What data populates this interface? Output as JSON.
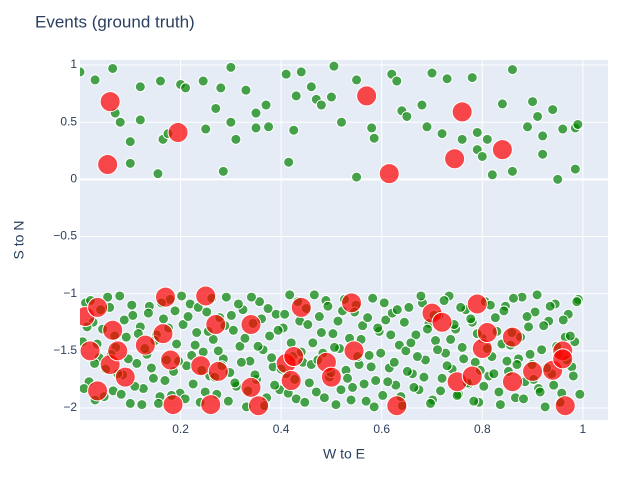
{
  "chart_data": {
    "type": "scatter",
    "title": "Events (ground truth)",
    "x_label": "W to E",
    "y_label": "S to N",
    "xlim": [
      0,
      1.05
    ],
    "ylim": [
      -2.105,
      1.044
    ],
    "xticks": [
      0.2,
      0.4,
      0.6,
      0.8,
      1
    ],
    "yticks": [
      1,
      0.5,
      0,
      {
        "value": -0.5,
        "label": "−0.5"
      },
      {
        "value": -1,
        "label": "−1"
      },
      {
        "value": -1.5,
        "label": "−1.5"
      },
      {
        "value": -2,
        "label": "−2"
      }
    ],
    "grid": true,
    "background": "#e5ecf6",
    "series": [
      {
        "color": "green",
        "marker_size": 10,
        "opacity": 0.7,
        "x": [
          0,
          0.03,
          0.065,
          0.07,
          0.08,
          0.1,
          0.1,
          0.12,
          0.12,
          0.155,
          0.16,
          0.165,
          0.175,
          0.2,
          0.21,
          0.245,
          0.25,
          0.27,
          0.28,
          0.285,
          0.3,
          0.3,
          0.31,
          0.33,
          0.35,
          0.35,
          0.37,
          0.375,
          0.41,
          0.415,
          0.425,
          0.43,
          0.44,
          0.46,
          0.47,
          0.48,
          0.5,
          0.505,
          0.52,
          0.55,
          0.55,
          0.58,
          0.585,
          0.62,
          0.63,
          0.64,
          0.65,
          0.68,
          0.69,
          0.7,
          0.72,
          0.73,
          0.76,
          0.78,
          0.79,
          0.79,
          0.8,
          0.81,
          0.82,
          0.84,
          0.86,
          0.86,
          0.89,
          0.9,
          0.91,
          0.92,
          0.92,
          0.94,
          0.95,
          0.96,
          0.985,
          0.99,
          0.985
        ],
        "values": [
          0.94,
          0.87,
          0.97,
          0.58,
          0.5,
          0.33,
          0.14,
          0.81,
          0.52,
          0.05,
          0.86,
          0.35,
          0.4,
          0.83,
          0.8,
          0.86,
          0.44,
          0.62,
          0.8,
          0.07,
          0.98,
          0.5,
          0.35,
          0.78,
          0.45,
          0.58,
          0.65,
          0.46,
          0.92,
          0.15,
          0.43,
          0.73,
          0.94,
          0.81,
          0.7,
          0.65,
          0.72,
          0.99,
          0.5,
          0.02,
          0.87,
          0.45,
          0.36,
          0.92,
          0.86,
          0.6,
          0.55,
          0.65,
          0.46,
          0.93,
          0.4,
          0.88,
          0.35,
          0.89,
          0.41,
          0.26,
          0.2,
          0.35,
          0.04,
          0.66,
          0.96,
          0.07,
          0.46,
          0.68,
          0.55,
          0.38,
          0.22,
          0.61,
          0,
          0.44,
          0.45,
          0.48,
          0.09
        ]
      },
      {
        "color": "green",
        "marker_size": 10,
        "opacity": 0.7,
        "x": [
          0.005,
          0.011,
          0.018,
          0.026,
          0.03,
          0.038,
          0.045,
          0.051,
          0.059,
          0.066,
          0.071,
          0.079,
          0.085,
          0.092,
          0.1,
          0.105,
          0.113,
          0.12,
          0.126,
          0.133,
          0.138,
          0.146,
          0.152,
          0.159,
          0.166,
          0.172,
          0.179,
          0.186,
          0.192,
          0.199,
          0.205,
          0.212,
          0.219,
          0.225,
          0.232,
          0.239,
          0.245,
          0.252,
          0.258,
          0.265,
          0.272,
          0.278,
          0.285,
          0.291,
          0.298,
          0.305,
          0.311,
          0.318,
          0.324,
          0.331,
          0.338,
          0.344,
          0.351,
          0.357,
          0.364,
          0.371,
          0.377,
          0.384,
          0.39,
          0.397,
          0.404,
          0.41,
          0.417,
          0.423,
          0.43,
          0.437,
          0.443,
          0.45,
          0.456,
          0.463,
          0.47,
          0.476,
          0.483,
          0.489,
          0.496,
          0.503,
          0.509,
          0.516,
          0.522,
          0.529,
          0.536,
          0.542,
          0.549,
          0.555,
          0.562,
          0.569,
          0.575,
          0.582,
          0.588,
          0.595,
          0.602,
          0.608,
          0.615,
          0.621,
          0.628,
          0.635,
          0.641,
          0.648,
          0.654,
          0.661,
          0.668,
          0.674,
          0.681,
          0.687,
          0.694,
          0.701,
          0.707,
          0.714,
          0.72,
          0.727,
          0.734,
          0.74,
          0.747,
          0.753,
          0.76,
          0.767,
          0.773,
          0.78,
          0.786,
          0.793,
          0.8,
          0.806,
          0.813,
          0.819,
          0.826,
          0.833,
          0.839,
          0.846,
          0.852,
          0.859,
          0.866,
          0.872,
          0.879,
          0.885,
          0.892,
          0.899,
          0.905,
          0.912,
          0.918,
          0.925,
          0.932,
          0.938,
          0.945,
          0.951,
          0.958,
          0.965,
          0.971,
          0.978,
          0.984,
          0.991
        ],
        "values": [
          -1.42,
          -1.08,
          -1.77,
          -1.25,
          -1.93,
          -1.56,
          -1.31,
          -1.66,
          -1.12,
          -1.85,
          -1.47,
          -1.02,
          -1.71,
          -1.38,
          -1.96,
          -1.19,
          -1.61,
          -1.29,
          -1.83,
          -1.53,
          -1.11,
          -1.74,
          -1.36,
          -1.9,
          -1.22,
          -1.58,
          -1.05,
          -1.68,
          -1.44,
          -1.87,
          -1.27,
          -1.63,
          -1.09,
          -1.79,
          -1.34,
          -1.95,
          -1.51,
          -1.16,
          -1.72,
          -1.4,
          -1.88,
          -1.21,
          -1.57,
          -1.03,
          -1.69,
          -1.32,
          -1.81,
          -1.46,
          -1.14,
          -1.99,
          -1.59,
          -1.26,
          -1.75,
          -1.07,
          -1.49,
          -1.91,
          -1.37,
          -1.64,
          -1.18,
          -1.84,
          -1.3,
          -1.7,
          -1.01,
          -1.55,
          -1.92,
          -1.24,
          -1.6,
          -1.13,
          -1.78,
          -1.43,
          -1.86,
          -1.2,
          -1.52,
          -1.06,
          -1.73,
          -1.35,
          -1.97,
          -1.48,
          -1.15,
          -1.67,
          -1.39,
          -1.82,
          -1.1,
          -1.62,
          -1.28,
          -1.94,
          -1.54,
          -1.04,
          -1.76,
          -1.33,
          -1.89,
          -1.23,
          -1.65,
          -1.17,
          -1.8,
          -1.45,
          -1.98,
          -1.5,
          -1.12,
          -1.7,
          -1.36,
          -1.84,
          -1.08,
          -1.58,
          -1.26,
          -1.93,
          -1.41,
          -1.19,
          -1.74,
          -1.52,
          -1.02,
          -1.66,
          -1.31,
          -1.88,
          -1.47,
          -1.14,
          -1.79,
          -1.25,
          -1.6,
          -1.95,
          -1.39,
          -1.07,
          -1.72,
          -1.55,
          -1.21,
          -1.86,
          -1.44,
          -1.11,
          -1.68,
          -1.34,
          -1.91,
          -1.57,
          -1.03,
          -1.77,
          -1.29,
          -1.62,
          -1.16,
          -1.83,
          -1.49,
          -1.99,
          -1.24,
          -1.7,
          -1.09,
          -1.53,
          -1.87,
          -1.38,
          -1.18,
          -1.64,
          -1.42,
          -1.05
        ]
      },
      {
        "color": "green",
        "marker_size": 10,
        "opacity": 0.7,
        "x": [
          0.008,
          0.014,
          0.021,
          0.029,
          0.034,
          0.041,
          0.048,
          0.055,
          0.062,
          0.069,
          0.075,
          0.082,
          0.088,
          0.096,
          0.103,
          0.109,
          0.116,
          0.123,
          0.129,
          0.136,
          0.142,
          0.149,
          0.156,
          0.162,
          0.169,
          0.176,
          0.182,
          0.189,
          0.196,
          0.202,
          0.209,
          0.215,
          0.222,
          0.229,
          0.235,
          0.242,
          0.249,
          0.255,
          0.262,
          0.268,
          0.275,
          0.282,
          0.288,
          0.295,
          0.301,
          0.308,
          0.315,
          0.321,
          0.328,
          0.334,
          0.341,
          0.348,
          0.354,
          0.361,
          0.367,
          0.374,
          0.381,
          0.387,
          0.394,
          0.4,
          0.407,
          0.414,
          0.42,
          0.427,
          0.433,
          0.44,
          0.447,
          0.453,
          0.46,
          0.466,
          0.473,
          0.48,
          0.486,
          0.493,
          0.499,
          0.506,
          0.513,
          0.519,
          0.526,
          0.532,
          0.539,
          0.546,
          0.552,
          0.559,
          0.565,
          0.572,
          0.579,
          0.585,
          0.592,
          0.598,
          0.605,
          0.612,
          0.618,
          0.625,
          0.631,
          0.638,
          0.645,
          0.651,
          0.658,
          0.664,
          0.671,
          0.678,
          0.684,
          0.691,
          0.697,
          0.704,
          0.711,
          0.717,
          0.724,
          0.73,
          0.737,
          0.744,
          0.75,
          0.757,
          0.763,
          0.77,
          0.777,
          0.783,
          0.79,
          0.796,
          0.803,
          0.81,
          0.816,
          0.823,
          0.829,
          0.836,
          0.843,
          0.849,
          0.856,
          0.862,
          0.869,
          0.876,
          0.882,
          0.889,
          0.895,
          0.902,
          0.909,
          0.915,
          0.922,
          0.928,
          0.935,
          0.942,
          0.948,
          0.955,
          0.961,
          0.968,
          0.975,
          0.981,
          0.988,
          0.994
        ],
        "values": [
          -1.83,
          -1.29,
          -1.06,
          -1.61,
          -1.44,
          -1.14,
          -1.9,
          -1.03,
          -1.53,
          -1.37,
          -1.7,
          -1.88,
          -1.23,
          -1.57,
          -1.1,
          -1.81,
          -1.35,
          -1.97,
          -1.48,
          -1.17,
          -1.65,
          -1.41,
          -1.96,
          -1.08,
          -1.76,
          -1.3,
          -1.89,
          -1.15,
          -1.59,
          -1.02,
          -1.92,
          -1.2,
          -1.54,
          -1.45,
          -1.12,
          -1.67,
          -1.86,
          -1.33,
          -1.04,
          -1.73,
          -1.5,
          -1.63,
          -1.28,
          -1.94,
          -1.19,
          -1.78,
          -1.09,
          -1.6,
          -1.39,
          -1.85,
          -1.03,
          -1.71,
          -1.46,
          -1.22,
          -1.98,
          -1.13,
          -1.56,
          -1.8,
          -1.32,
          -1.66,
          -1.18,
          -1.87,
          -1.43,
          -1.75,
          -1.07,
          -1.51,
          -1.95,
          -1.27,
          -1.62,
          -1.01,
          -1.58,
          -1.34,
          -1.91,
          -1.11,
          -1.69,
          -1.47,
          -1.24,
          -1.84,
          -1.05,
          -1.74,
          -1.93,
          -1.16,
          -1.55,
          -1.4,
          -1.79,
          -1.21,
          -1.64,
          -1.99,
          -1.3,
          -1.52,
          -1.08,
          -1.77,
          -1.36,
          -1.6,
          -1.14,
          -1.9,
          -1.25,
          -1.68,
          -1.43,
          -1.82,
          -1.55,
          -1.02,
          -1.73,
          -1.31,
          -1.96,
          -1.19,
          -1.49,
          -1.85,
          -1.06,
          -1.63,
          -1.4,
          -1.27,
          -1.89,
          -1.12,
          -1.57,
          -1.78,
          -1.22,
          -1.94,
          -1.35,
          -1.67,
          -1.81,
          -1.48,
          -1.1,
          -1.7,
          -1.33,
          -1.97,
          -1.15,
          -1.59,
          -1.45,
          -1.04,
          -1.62,
          -1.38,
          -1.92,
          -1.2,
          -1.53,
          -1.75,
          -1.01,
          -1.86,
          -1.28,
          -1.65,
          -1.11,
          -1.8,
          -1.46,
          -1.95,
          -1.23,
          -1.58,
          -1.37,
          -1.72,
          -1.07,
          -1.88
        ]
      },
      {
        "color": "red",
        "marker_size": 20,
        "opacity": 0.7,
        "x": [
          0.06,
          0.055,
          0.195,
          0.57,
          0.615,
          0.745,
          0.76,
          0.84,
          0.01,
          0.02,
          0.035,
          0.035,
          0.065,
          0.06,
          0.075,
          0.09,
          0.13,
          0.165,
          0.17,
          0.18,
          0.185,
          0.25,
          0.24,
          0.26,
          0.27,
          0.275,
          0.34,
          0.355,
          0.34,
          0.41,
          0.425,
          0.42,
          0.44,
          0.49,
          0.5,
          0.54,
          0.545,
          0.63,
          0.7,
          0.72,
          0.75,
          0.78,
          0.79,
          0.8,
          0.81,
          0.86,
          0.86,
          0.9,
          0.94,
          0.96,
          0.96,
          0.965
        ],
        "values": [
          0.68,
          0.13,
          0.41,
          0.73,
          0.05,
          0.18,
          0.59,
          0.26,
          -1.2,
          -1.5,
          -1.12,
          -1.85,
          -1.32,
          -1.62,
          -1.5,
          -1.73,
          -1.45,
          -1.35,
          -1.03,
          -1.58,
          -1.97,
          -1.02,
          -1.63,
          -1.97,
          -1.27,
          -1.68,
          -1.27,
          -1.98,
          -1.82,
          -1.61,
          -1.55,
          -1.76,
          -1.12,
          -1.6,
          -1.73,
          -1.08,
          -1.5,
          -1.98,
          -1.17,
          -1.25,
          -1.77,
          -1.72,
          -1.09,
          -1.48,
          -1.34,
          -1.38,
          -1.77,
          -1.68,
          -1.67,
          -1.5,
          -1.57,
          -1.98
        ]
      }
    ]
  }
}
